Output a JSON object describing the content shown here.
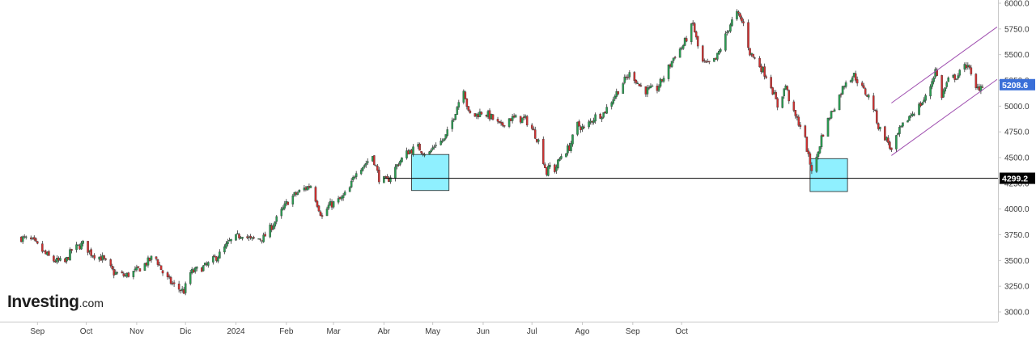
{
  "logo": {
    "brand": "Investing",
    "domain": ".com"
  },
  "chart_data": {
    "type": "candlestick",
    "title": "",
    "xlabel": "",
    "ylabel": "",
    "ylim": [
      2975,
      6025
    ],
    "y_ticks": [
      "3000.0",
      "3250.0",
      "3500.0",
      "3750.0",
      "4000.0",
      "4250.0",
      "4500.0",
      "4750.0",
      "5000.0",
      "5250.0",
      "5500.0",
      "5750.0",
      "6000.0"
    ],
    "x_labels": [
      "Sep",
      "Oct",
      "Nov",
      "Dic",
      "2024",
      "Feb",
      "Mar",
      "Abr",
      "May",
      "Jun",
      "Jul",
      "Ago",
      "Sep",
      "Oct"
    ],
    "x_label_dates": [
      "2023-09-01",
      "2023-10-01",
      "2023-11-01",
      "2023-12-01",
      "2024-01-01",
      "2024-02-01",
      "2024-03-01",
      "2024-04-01",
      "2024-05-01",
      "2024-06-01",
      "2024-07-01",
      "2024-08-01",
      "2024-09-01",
      "2024-10-01"
    ],
    "series_points": [
      [
        "2023-08-22",
        3720
      ],
      [
        "2023-08-29",
        3690
      ],
      [
        "2023-09-06",
        3560
      ],
      [
        "2023-09-11",
        3500
      ],
      [
        "2023-09-18",
        3480
      ],
      [
        "2023-09-22",
        3600
      ],
      [
        "2023-09-29",
        3660
      ],
      [
        "2023-10-04",
        3570
      ],
      [
        "2023-10-11",
        3520
      ],
      [
        "2023-10-18",
        3380
      ],
      [
        "2023-10-25",
        3350
      ],
      [
        "2023-11-01",
        3400
      ],
      [
        "2023-11-08",
        3490
      ],
      [
        "2023-11-12",
        3550
      ],
      [
        "2023-11-18",
        3350
      ],
      [
        "2023-11-25",
        3240
      ],
      [
        "2023-11-30",
        3200
      ],
      [
        "2023-12-04",
        3380
      ],
      [
        "2023-12-14",
        3450
      ],
      [
        "2023-12-22",
        3560
      ],
      [
        "2023-12-28",
        3680
      ],
      [
        "2024-01-05",
        3760
      ],
      [
        "2024-01-10",
        3700
      ],
      [
        "2024-01-18",
        3720
      ],
      [
        "2024-01-26",
        3900
      ],
      [
        "2024-02-03",
        4100
      ],
      [
        "2024-02-10",
        4180
      ],
      [
        "2024-02-16",
        4230
      ],
      [
        "2024-02-19",
        4100
      ],
      [
        "2024-02-23",
        3920
      ],
      [
        "2024-02-27",
        4030
      ],
      [
        "2024-03-06",
        4100
      ],
      [
        "2024-03-11",
        4200
      ],
      [
        "2024-03-15",
        4380
      ],
      [
        "2024-03-20",
        4430
      ],
      [
        "2024-03-25",
        4520
      ],
      [
        "2024-03-29",
        4300
      ],
      [
        "2024-04-03",
        4270
      ],
      [
        "2024-04-10",
        4450
      ],
      [
        "2024-04-16",
        4560
      ],
      [
        "2024-04-22",
        4600
      ],
      [
        "2024-04-28",
        4520
      ],
      [
        "2024-05-03",
        4640
      ],
      [
        "2024-05-08",
        4670
      ],
      [
        "2024-05-12",
        4810
      ],
      [
        "2024-05-16",
        5000
      ],
      [
        "2024-05-20",
        5180
      ],
      [
        "2024-05-23",
        4930
      ],
      [
        "2024-05-26",
        4900
      ],
      [
        "2024-06-01",
        4950
      ],
      [
        "2024-06-06",
        4890
      ],
      [
        "2024-06-12",
        4800
      ],
      [
        "2024-06-16",
        4880
      ],
      [
        "2024-06-21",
        4880
      ],
      [
        "2024-06-27",
        4870
      ],
      [
        "2024-07-01",
        4780
      ],
      [
        "2024-07-05",
        4660
      ],
      [
        "2024-07-10",
        4350
      ],
      [
        "2024-07-12",
        4420
      ],
      [
        "2024-07-15",
        4380
      ],
      [
        "2024-07-19",
        4520
      ],
      [
        "2024-07-24",
        4600
      ],
      [
        "2024-07-29",
        4820
      ],
      [
        "2024-08-02",
        4780
      ],
      [
        "2024-08-09",
        4900
      ],
      [
        "2024-08-14",
        4930
      ],
      [
        "2024-08-20",
        5080
      ],
      [
        "2024-08-26",
        5230
      ],
      [
        "2024-08-31",
        5330
      ],
      [
        "2024-09-05",
        5200
      ],
      [
        "2024-09-09",
        5150
      ],
      [
        "2024-09-16",
        5170
      ],
      [
        "2024-09-22",
        5340
      ],
      [
        "2024-09-27",
        5500
      ],
      [
        "2024-10-02",
        5590
      ],
      [
        "2024-10-08",
        5800
      ],
      [
        "2024-10-13",
        5430
      ],
      [
        "2024-10-17",
        5400
      ],
      [
        "2024-10-22",
        5450
      ],
      [
        "2024-10-26",
        5600
      ],
      [
        "2024-10-31",
        5800
      ],
      [
        "2024-11-04",
        5900
      ],
      [
        "2024-11-08",
        5800
      ],
      [
        "2024-11-12",
        5520
      ],
      [
        "2024-11-17",
        5420
      ],
      [
        "2024-11-24",
        5250
      ],
      [
        "2024-11-29",
        5000
      ],
      [
        "2024-12-04",
        5200
      ],
      [
        "2024-12-08",
        4950
      ],
      [
        "2024-12-15",
        4760
      ],
      [
        "2024-12-18",
        4500
      ],
      [
        "2024-12-21",
        4340
      ],
      [
        "2024-12-26",
        4700
      ],
      [
        "2024-12-31",
        4900
      ],
      [
        "2025-01-06",
        5100
      ],
      [
        "2025-01-10",
        5250
      ],
      [
        "2025-01-15",
        5300
      ],
      [
        "2025-01-21",
        5150
      ],
      [
        "2025-01-26",
        5050
      ],
      [
        "2025-01-30",
        4800
      ],
      [
        "2025-02-05",
        4650
      ],
      [
        "2025-02-07",
        4560
      ],
      [
        "2025-02-12",
        4760
      ],
      [
        "2025-02-18",
        4900
      ],
      [
        "2025-02-24",
        5000
      ],
      [
        "2025-03-01",
        5100
      ],
      [
        "2025-03-06",
        5350
      ],
      [
        "2025-03-10",
        5100
      ],
      [
        "2025-03-14",
        5250
      ],
      [
        "2025-03-20",
        5300
      ],
      [
        "2025-03-26",
        5420
      ],
      [
        "2025-03-30",
        5150
      ],
      [
        "2025-04-04",
        5210
      ]
    ],
    "annotations": {
      "support_level": 4299.2,
      "support_label": "4299.2",
      "last_price": 5208.6,
      "last_label": "5208.6",
      "support_line_start": "2024-04-01",
      "highlight_boxes": [
        {
          "x_start": "2024-04-18",
          "x_end": "2024-05-11",
          "y_low": 4180,
          "y_high": 4530
        },
        {
          "x_start": "2024-12-19",
          "x_end": "2025-01-11",
          "y_low": 4170,
          "y_high": 4490
        }
      ],
      "channel": {
        "upper": [
          [
            "2025-02-07",
            5030
          ],
          [
            "2025-04-13",
            5770
          ]
        ],
        "lower": [
          [
            "2025-02-07",
            4520
          ],
          [
            "2025-04-13",
            5260
          ]
        ]
      }
    },
    "grid": false,
    "legend": "none",
    "colors": {
      "up": "#2a9d52",
      "down": "#d03030",
      "wick": "#333333",
      "box": "#8ff0ff",
      "channel": "#a050b0",
      "support": "#000000",
      "last_tag": "#3a6fd8"
    }
  }
}
